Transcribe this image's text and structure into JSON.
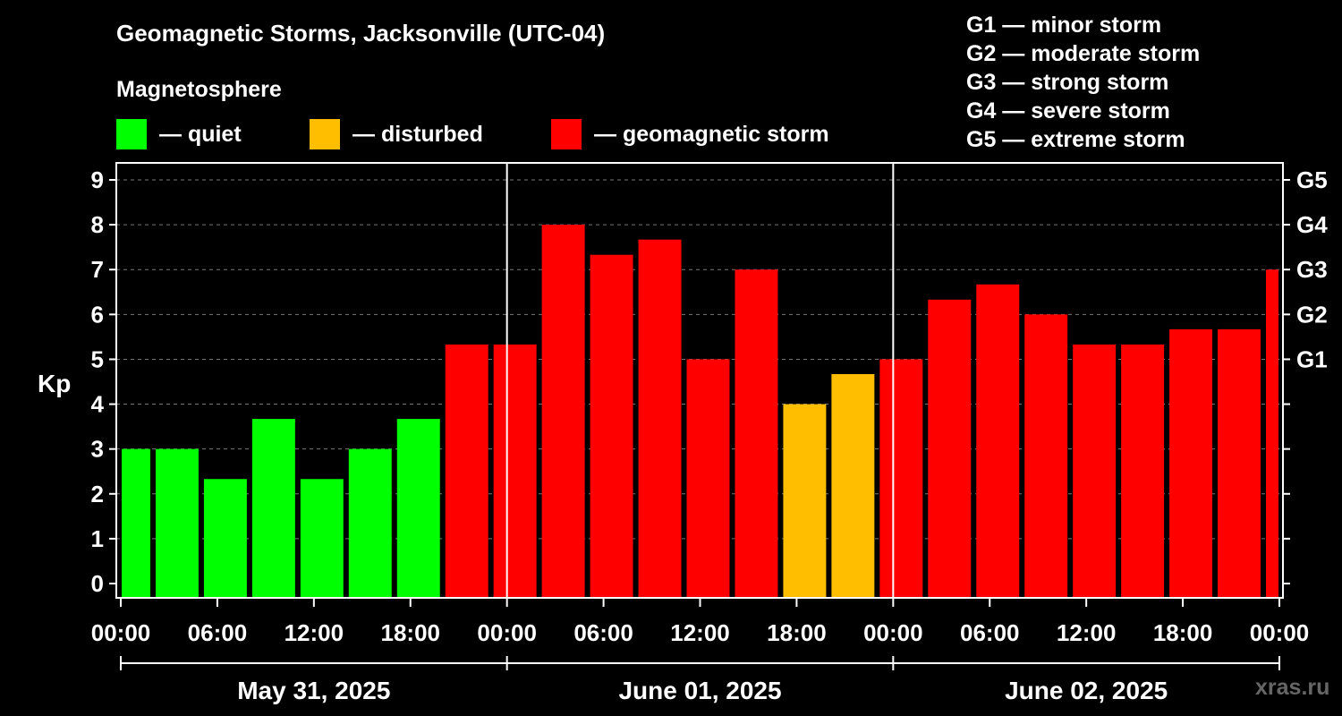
{
  "title": "Geomagnetic Storms, Jacksonville (UTC-04)",
  "legend": {
    "heading": "Magnetosphere",
    "items": [
      {
        "label": "— quiet",
        "color": "#00ff00"
      },
      {
        "label": "— disturbed",
        "color": "#ffbf00"
      },
      {
        "label": "— geomagnetic storm",
        "color": "#ff0000"
      }
    ]
  },
  "g_scale": [
    "G1 — minor storm",
    "G2 — moderate storm",
    "G3 — strong storm",
    "G4 — severe storm",
    "G5 — extreme storm"
  ],
  "watermark": "xras.ru",
  "chart_data": {
    "type": "bar",
    "ylabel": "Kp",
    "ylim": [
      0,
      9
    ],
    "yticks": [
      "0",
      "1",
      "2",
      "3",
      "4",
      "5",
      "6",
      "7",
      "8",
      "9"
    ],
    "right_ticks": [
      {
        "label": "G1",
        "kp": 5
      },
      {
        "label": "G2",
        "kp": 6
      },
      {
        "label": "G3",
        "kp": 7
      },
      {
        "label": "G4",
        "kp": 8
      },
      {
        "label": "G5",
        "kp": 9
      }
    ],
    "x_range_hours": [
      0,
      72
    ],
    "xtick_labels": [
      "00:00",
      "06:00",
      "12:00",
      "18:00",
      "00:00",
      "06:00",
      "12:00",
      "18:00",
      "00:00",
      "06:00",
      "12:00",
      "18:00",
      "00:00"
    ],
    "day_labels": [
      "May 31, 2025",
      "June 01, 2025",
      "June 02, 2025"
    ],
    "day_boundaries_hours": [
      24,
      48
    ],
    "bars": [
      {
        "start": 0,
        "end": 2,
        "kp": 3.0,
        "level": "quiet"
      },
      {
        "start": 2,
        "end": 5,
        "kp": 3.0,
        "level": "quiet"
      },
      {
        "start": 5,
        "end": 8,
        "kp": 2.33,
        "level": "quiet"
      },
      {
        "start": 8,
        "end": 11,
        "kp": 3.67,
        "level": "quiet"
      },
      {
        "start": 11,
        "end": 14,
        "kp": 2.33,
        "level": "quiet"
      },
      {
        "start": 14,
        "end": 17,
        "kp": 3.0,
        "level": "quiet"
      },
      {
        "start": 17,
        "end": 20,
        "kp": 3.67,
        "level": "quiet"
      },
      {
        "start": 20,
        "end": 23,
        "kp": 5.33,
        "level": "storm"
      },
      {
        "start": 23,
        "end": 26,
        "kp": 5.33,
        "level": "storm"
      },
      {
        "start": 26,
        "end": 29,
        "kp": 8.0,
        "level": "storm"
      },
      {
        "start": 29,
        "end": 32,
        "kp": 7.33,
        "level": "storm"
      },
      {
        "start": 32,
        "end": 35,
        "kp": 7.67,
        "level": "storm"
      },
      {
        "start": 35,
        "end": 38,
        "kp": 5.0,
        "level": "storm"
      },
      {
        "start": 38,
        "end": 41,
        "kp": 7.0,
        "level": "storm"
      },
      {
        "start": 41,
        "end": 44,
        "kp": 4.0,
        "level": "disturbed"
      },
      {
        "start": 44,
        "end": 47,
        "kp": 4.67,
        "level": "disturbed"
      },
      {
        "start": 47,
        "end": 50,
        "kp": 5.0,
        "level": "storm"
      },
      {
        "start": 50,
        "end": 53,
        "kp": 6.33,
        "level": "storm"
      },
      {
        "start": 53,
        "end": 56,
        "kp": 6.67,
        "level": "storm"
      },
      {
        "start": 56,
        "end": 59,
        "kp": 6.0,
        "level": "storm"
      },
      {
        "start": 59,
        "end": 62,
        "kp": 5.33,
        "level": "storm"
      },
      {
        "start": 62,
        "end": 65,
        "kp": 5.33,
        "level": "storm"
      },
      {
        "start": 65,
        "end": 68,
        "kp": 5.67,
        "level": "storm"
      },
      {
        "start": 68,
        "end": 71,
        "kp": 5.67,
        "level": "storm"
      },
      {
        "start": 71,
        "end": 72,
        "kp": 7.0,
        "level": "storm"
      }
    ],
    "colors": {
      "quiet": "#00ff00",
      "disturbed": "#ffbf00",
      "storm": "#ff0000"
    }
  }
}
